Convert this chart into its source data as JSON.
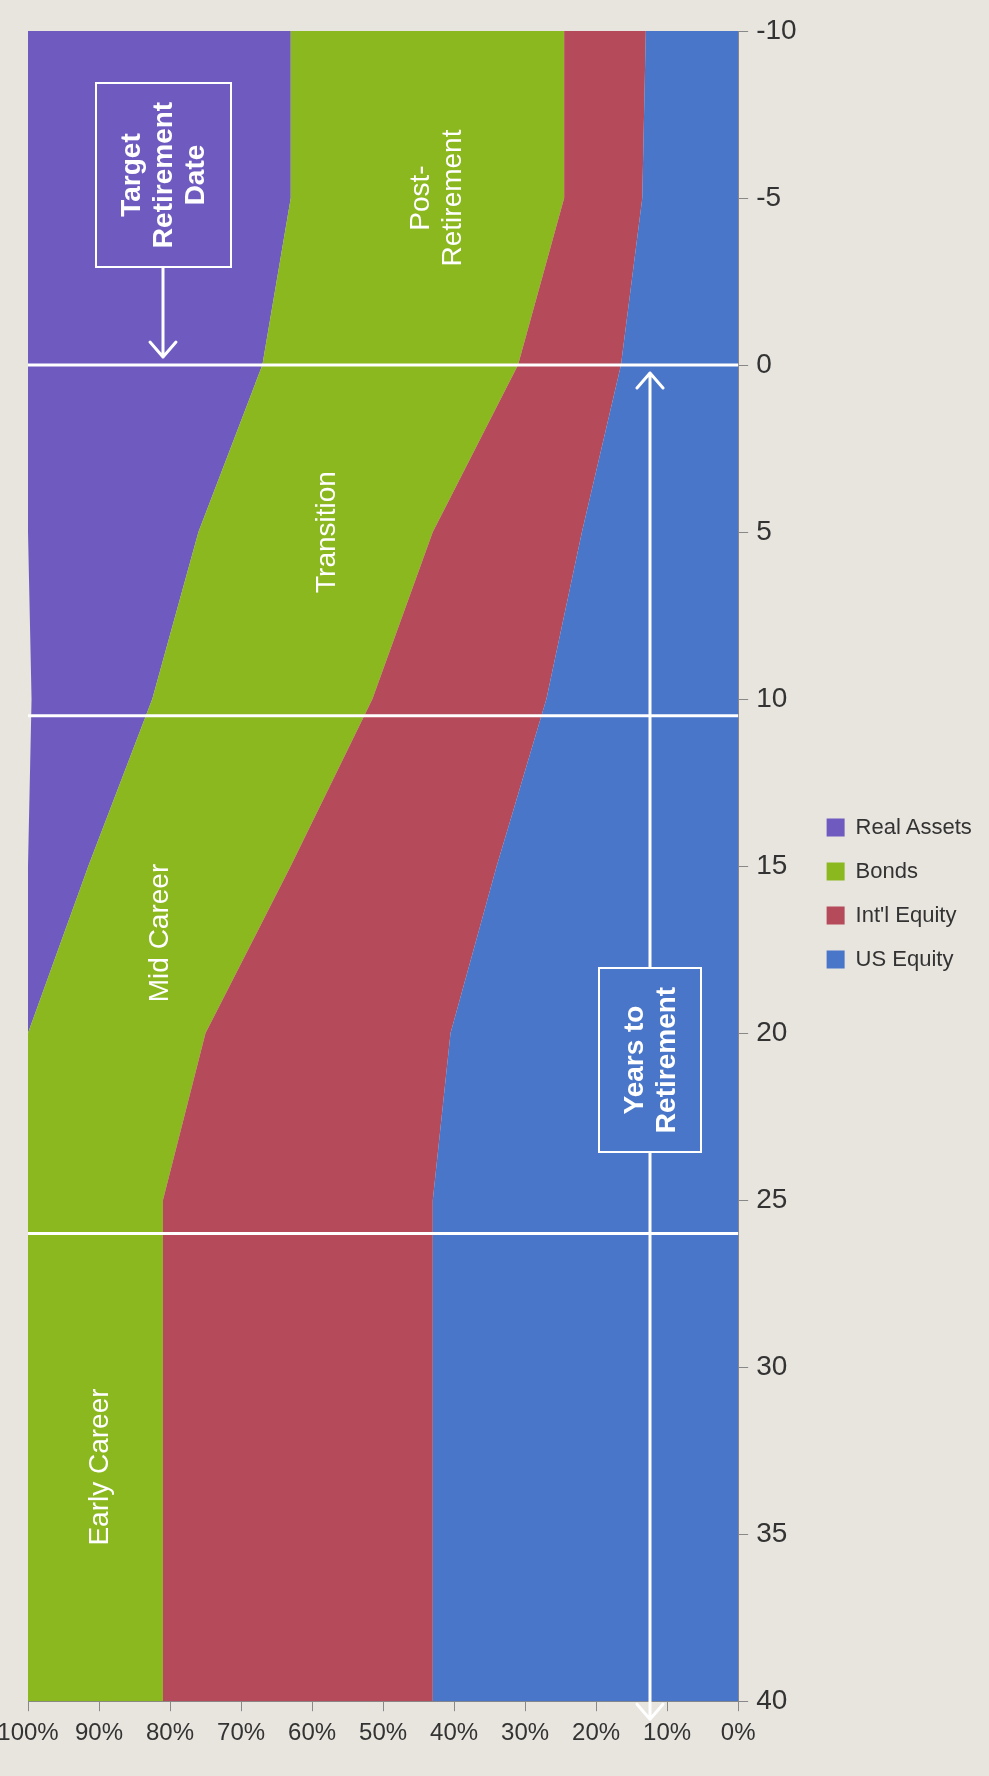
{
  "chart_data": {
    "type": "area",
    "stacked": true,
    "orientation": "horizontal",
    "x": [
      40,
      35,
      30,
      25,
      20,
      15,
      10,
      5,
      0,
      -5,
      -10
    ],
    "series": [
      {
        "name": "US Equity",
        "color": "#4a76c9",
        "values": [
          43,
          43,
          43,
          43,
          40.5,
          34,
          27,
          22,
          16.5,
          13.5,
          13
        ]
      },
      {
        "name": "Int'l Equity",
        "color": "#b54b5a",
        "values": [
          38,
          38,
          38,
          38,
          34.5,
          29,
          24.5,
          21,
          14.5,
          11,
          11.5
        ]
      },
      {
        "name": "Bonds",
        "color": "#8ab81e",
        "values": [
          19,
          19,
          19,
          19,
          25,
          28.5,
          31,
          33,
          36,
          38.5,
          38.5
        ]
      },
      {
        "name": "Real Assets",
        "color": "#6f5bc0",
        "values": [
          0,
          0,
          0,
          0,
          0,
          8.5,
          17,
          24,
          33,
          37,
          37
        ]
      }
    ],
    "ylim": [
      40,
      -10
    ],
    "yticks": [
      40,
      35,
      30,
      25,
      20,
      15,
      10,
      5,
      0,
      -5,
      -10
    ],
    "xlim": [
      100,
      0
    ],
    "xticks": [
      {
        "value": 0,
        "label": "0%"
      },
      {
        "value": 10,
        "label": "10%"
      },
      {
        "value": 20,
        "label": "20%"
      },
      {
        "value": 30,
        "label": "30%"
      },
      {
        "value": 40,
        "label": "40%"
      },
      {
        "value": 50,
        "label": "50%"
      },
      {
        "value": 60,
        "label": "60%"
      },
      {
        "value": 70,
        "label": "70%"
      },
      {
        "value": 80,
        "label": "80%"
      },
      {
        "value": 90,
        "label": "90%"
      },
      {
        "value": 100,
        "label": "100%"
      }
    ],
    "grid": false,
    "legend": "right",
    "ref_lines": [
      {
        "axis": "y",
        "value": 26,
        "color": "#ffffff"
      },
      {
        "axis": "y",
        "value": 10.5,
        "color": "#ffffff"
      },
      {
        "axis": "y",
        "value": 0,
        "color": "#ffffff"
      }
    ],
    "annotations": [
      "Early Career",
      "Mid Career",
      "Transition",
      "Post-\nRetirement",
      "Target\nRetirement\nDate",
      "Years to\nRetirement"
    ]
  }
}
